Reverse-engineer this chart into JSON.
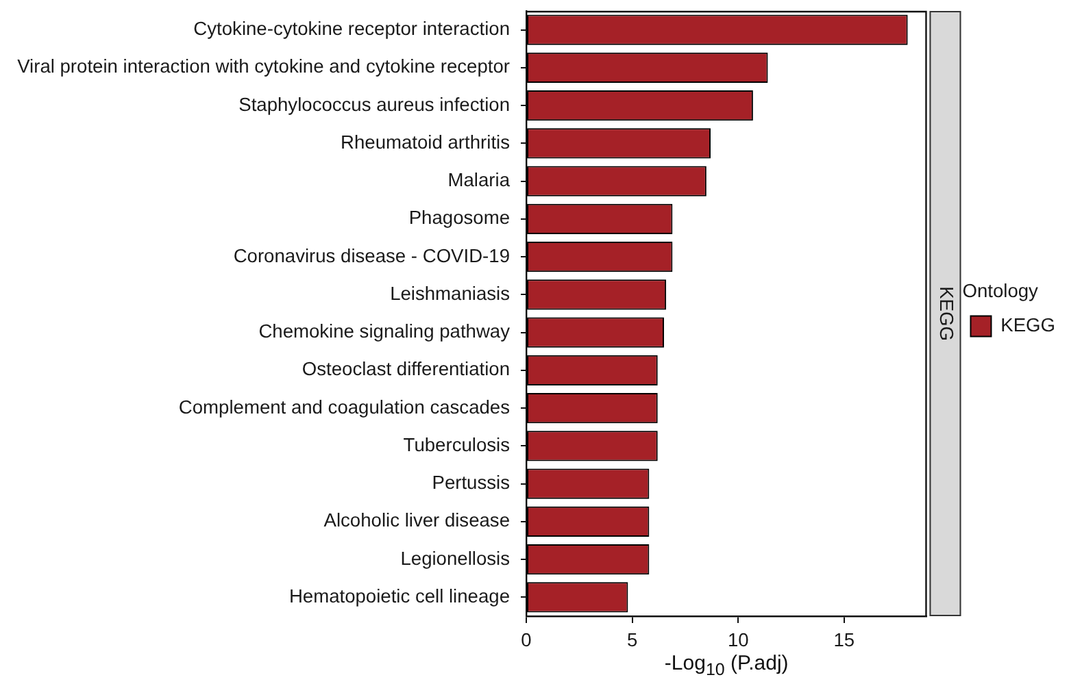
{
  "chart_data": {
    "type": "bar",
    "orientation": "horizontal",
    "categories": [
      "Cytokine-cytokine receptor interaction",
      "Viral protein interaction with cytokine and cytokine receptor",
      "Staphylococcus aureus infection",
      "Rheumatoid arthritis",
      "Malaria",
      "Phagosome",
      "Coronavirus disease - COVID-19",
      "Leishmaniasis",
      "Chemokine signaling pathway",
      "Osteoclast differentiation",
      "Complement and coagulation cascades",
      "Tuberculosis",
      "Pertussis",
      "Alcoholic liver disease",
      "Legionellosis",
      "Hematopoietic cell lineage"
    ],
    "series": [
      {
        "name": "KEGG",
        "color": "#a52127",
        "values": [
          18.0,
          11.4,
          10.7,
          8.7,
          8.5,
          6.9,
          6.9,
          6.6,
          6.5,
          6.2,
          6.2,
          6.2,
          5.8,
          5.8,
          5.8,
          4.8
        ]
      }
    ],
    "xlabel": "-Log$_{10}$ (P.adj)",
    "xlim": [
      0,
      18.9
    ],
    "xticks": [
      0,
      5,
      10,
      15
    ],
    "legend": "right",
    "legend_title": "Ontology",
    "annotations": [
      "KEGG"
    ]
  }
}
